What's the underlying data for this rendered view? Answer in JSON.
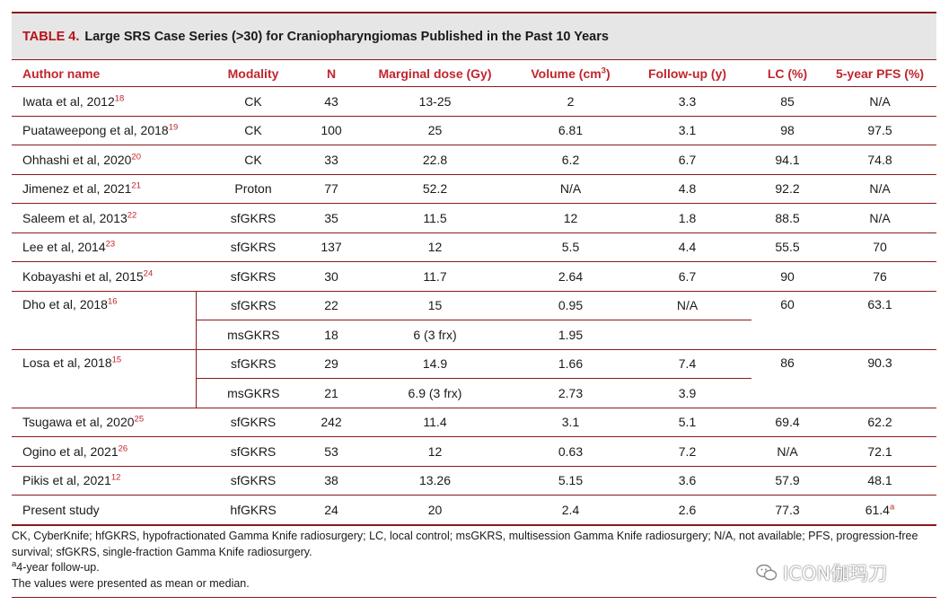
{
  "table": {
    "number": "TABLE 4.",
    "title": "Large SRS Case Series (>30) for Craniopharyngiomas Published in the Past 10 Years",
    "headers": {
      "author": "Author name",
      "modality": "Modality",
      "n": "N",
      "dose": "Marginal dose (Gy)",
      "volume": "Volume (cm",
      "volume_sup": "3",
      "volume_end": ")",
      "followup": "Follow-up (y)",
      "lc": "LC (%)",
      "pfs": "5-year PFS (%)"
    },
    "rows": [
      {
        "author": "Iwata et al, 2012",
        "ref": "18",
        "modality": "CK",
        "n": "43",
        "dose": "13-25",
        "volume": "2",
        "followup": "3.3",
        "lc": "85",
        "pfs": "N/A"
      },
      {
        "author": "Puataweepong et al, 2018",
        "ref": "19",
        "modality": "CK",
        "n": "100",
        "dose": "25",
        "volume": "6.81",
        "followup": "3.1",
        "lc": "98",
        "pfs": "97.5"
      },
      {
        "author": "Ohhashi et al, 2020",
        "ref": "20",
        "modality": "CK",
        "n": "33",
        "dose": "22.8",
        "volume": "6.2",
        "followup": "6.7",
        "lc": "94.1",
        "pfs": "74.8"
      },
      {
        "author": "Jimenez et al, 2021",
        "ref": "21",
        "modality": "Proton",
        "n": "77",
        "dose": "52.2",
        "volume": "N/A",
        "followup": "4.8",
        "lc": "92.2",
        "pfs": "N/A"
      },
      {
        "author": "Saleem et al, 2013",
        "ref": "22",
        "modality": "sfGKRS",
        "n": "35",
        "dose": "11.5",
        "volume": "12",
        "followup": "1.8",
        "lc": "88.5",
        "pfs": "N/A"
      },
      {
        "author": "Lee et al, 2014",
        "ref": "23",
        "modality": "sfGKRS",
        "n": "137",
        "dose": "12",
        "volume": "5.5",
        "followup": "4.4",
        "lc": "55.5",
        "pfs": "70"
      },
      {
        "author": "Kobayashi et al, 2015",
        "ref": "24",
        "modality": "sfGKRS",
        "n": "30",
        "dose": "11.7",
        "volume": "2.64",
        "followup": "6.7",
        "lc": "90",
        "pfs": "76"
      }
    ],
    "dho": {
      "author": "Dho et al, 2018",
      "ref": "16",
      "a": {
        "modality": "sfGKRS",
        "n": "22",
        "dose": "15",
        "volume": "0.95"
      },
      "b": {
        "modality": "msGKRS",
        "n": "18",
        "dose": "6 (3 frx)",
        "volume": "1.95"
      },
      "followup": "N/A",
      "lc": "60",
      "pfs": "63.1"
    },
    "losa": {
      "author": "Losa et al, 2018",
      "ref": "15",
      "a": {
        "modality": "sfGKRS",
        "n": "29",
        "dose": "14.9",
        "volume": "1.66",
        "followup": "7.4"
      },
      "b": {
        "modality": "msGKRS",
        "n": "21",
        "dose": "6.9 (3 frx)",
        "volume": "2.73",
        "followup": "3.9"
      },
      "lc": "86",
      "pfs": "90.3"
    },
    "rows2": [
      {
        "author": "Tsugawa et al, 2020",
        "ref": "25",
        "modality": "sfGKRS",
        "n": "242",
        "dose": "11.4",
        "volume": "3.1",
        "followup": "5.1",
        "lc": "69.4",
        "pfs": "62.2"
      },
      {
        "author": "Ogino et al, 2021",
        "ref": "26",
        "modality": "sfGKRS",
        "n": "53",
        "dose": "12",
        "volume": "0.63",
        "followup": "7.2",
        "lc": "N/A",
        "pfs": "72.1"
      },
      {
        "author": "Pikis et al, 2021",
        "ref": "12",
        "modality": "sfGKRS",
        "n": "38",
        "dose": "13.26",
        "volume": "5.15",
        "followup": "3.6",
        "lc": "57.9",
        "pfs": "48.1"
      }
    ],
    "present": {
      "author": "Present study",
      "modality": "hfGKRS",
      "n": "24",
      "dose": "20",
      "volume": "2.4",
      "followup": "2.6",
      "lc": "77.3",
      "pfs": "61.4",
      "pfs_sup": "a"
    }
  },
  "notes": {
    "abbrev": "CK, CyberKnife; hfGKRS, hypofractionated Gamma Knife radiosurgery; LC, local control; msGKRS, multisession Gamma Knife radiosurgery; N/A, not available; PFS, progression-free survival; sfGKRS, single-fraction Gamma Knife radiosurgery.",
    "footnote_mark": "a",
    "footnote": "4-year follow-up.",
    "values": "The values were presented as mean or median."
  },
  "watermark": {
    "text": "ICON伽玛刀",
    "icon": "wechat-icon"
  },
  "colors": {
    "accent": "#c0262d",
    "rule": "#8b1a1a",
    "title_bg": "#e6e6e6"
  }
}
